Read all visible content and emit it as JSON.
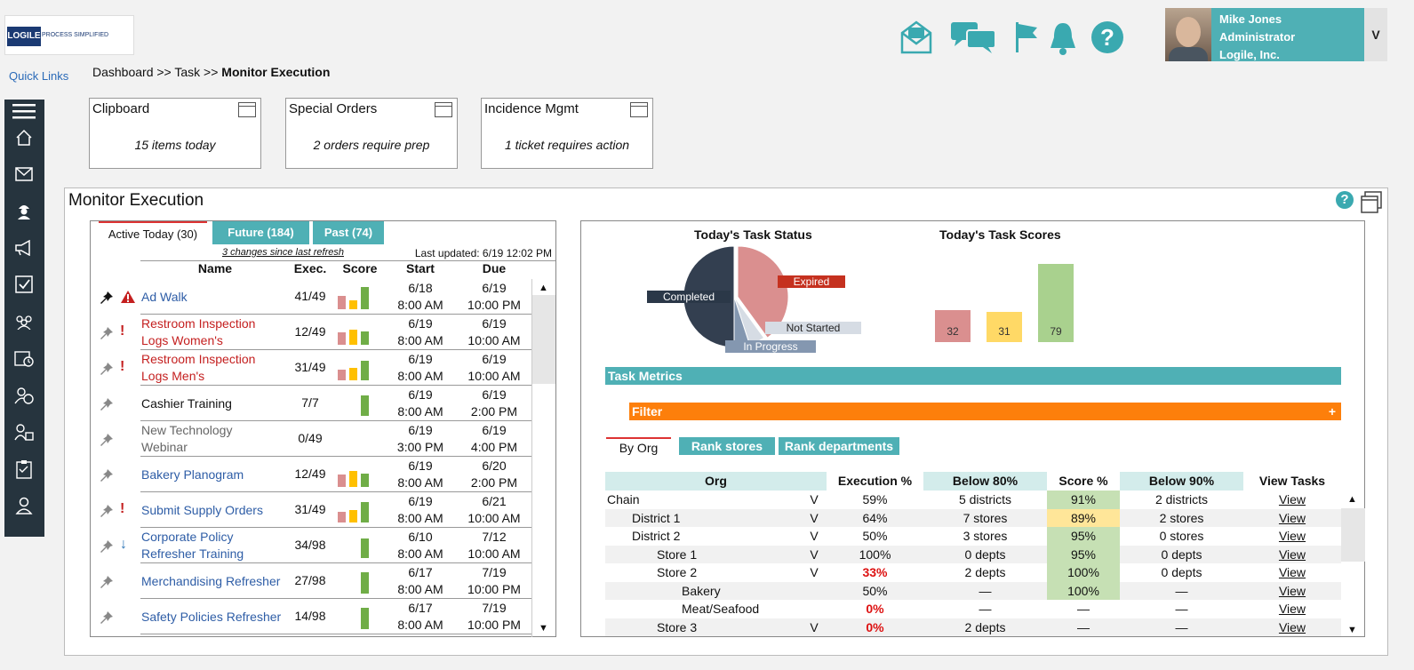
{
  "app": {
    "logo_text": "LOGILE",
    "logo_tagline": "PROCESS SIMPLIFIED",
    "quick_links": "Quick Links"
  },
  "breadcrumb": {
    "part1": "Dashboard >> Task >> ",
    "current": "Monitor Execution"
  },
  "header_icons": [
    "mail-icon",
    "chat-icon",
    "flag-icon",
    "bell-icon",
    "help-icon"
  ],
  "user": {
    "name": "Mike Jones",
    "role": "Administrator",
    "company": "Logile, Inc.",
    "menu_label": "V"
  },
  "sidebar": [
    "menu-icon",
    "home-icon",
    "mail-icon",
    "worker-icon",
    "megaphone-icon",
    "checkbox-icon",
    "team-icon",
    "schedule-icon",
    "clock-user-icon",
    "org-icon",
    "checklist-icon",
    "profile-icon"
  ],
  "cards": [
    {
      "title": "Clipboard",
      "subtitle": "15 items today"
    },
    {
      "title": "Special Orders",
      "subtitle": "2 orders require prep"
    },
    {
      "title": "Incidence Mgmt",
      "subtitle": "1 ticket requires action"
    }
  ],
  "monitor": {
    "title": "Monitor Execution",
    "tabs": [
      "Active Today (30)",
      "Future (184)",
      "Past (74)"
    ],
    "changes": "3 changes since last refresh",
    "last_updated": "Last updated: 6/19 12:02 PM",
    "headers": {
      "name": "Name",
      "exec": "Exec.",
      "score": "Score",
      "start": "Start",
      "due": "Due"
    },
    "tasks": [
      {
        "name1": "Ad Walk",
        "name2": "",
        "exec": "41/49",
        "start_date": "6/18",
        "start_time": "8:00 AM",
        "due_date": "6/19",
        "due_time": "10:00 PM",
        "color": "blue",
        "flag": "warning",
        "bars": [
          0.5,
          0.33,
          0.83
        ]
      },
      {
        "name1": "Restroom Inspection",
        "name2": "Logs Women's",
        "exec": "12/49",
        "start_date": "6/19",
        "start_time": "8:00 AM",
        "due_date": "6/19",
        "due_time": "10:00 AM",
        "color": "red",
        "flag": "!",
        "bars": [
          0.47,
          0.57,
          0.5
        ]
      },
      {
        "name1": "Restroom Inspection",
        "name2": "Logs Men's",
        "exec": "31/49",
        "start_date": "6/19",
        "start_time": "8:00 AM",
        "due_date": "6/19",
        "due_time": "10:00 AM",
        "color": "red",
        "flag": "!",
        "bars": [
          0.4,
          0.47,
          0.73
        ]
      },
      {
        "name1": "Cashier Training",
        "name2": "",
        "exec": "7/7",
        "start_date": "6/19",
        "start_time": "8:00 AM",
        "due_date": "6/19",
        "due_time": "2:00 PM",
        "color": "black",
        "flag": "",
        "bars": [
          0,
          0,
          0.77
        ]
      },
      {
        "name1": "New Technology",
        "name2": "Webinar",
        "exec": "0/49",
        "start_date": "6/19",
        "start_time": "3:00 PM",
        "due_date": "6/19",
        "due_time": "4:00 PM",
        "color": "gray",
        "flag": "",
        "bars": [
          0,
          0,
          0
        ]
      },
      {
        "name1": "Bakery Planogram",
        "name2": "",
        "exec": "12/49",
        "start_date": "6/19",
        "start_time": "8:00 AM",
        "due_date": "6/20",
        "due_time": "2:00 PM",
        "color": "blue",
        "flag": "",
        "bars": [
          0.47,
          0.6,
          0.5
        ]
      },
      {
        "name1": "Submit Supply Orders",
        "name2": "",
        "exec": "31/49",
        "start_date": "6/19",
        "start_time": "8:00 AM",
        "due_date": "6/21",
        "due_time": "10:00 AM",
        "color": "blue",
        "flag": "!",
        "bars": [
          0.4,
          0.47,
          0.77
        ]
      },
      {
        "name1": "Corporate Policy",
        "name2": "Refresher Training",
        "exec": "34/98",
        "start_date": "6/10",
        "start_time": "8:00 AM",
        "due_date": "7/12",
        "due_time": "10:00 AM",
        "color": "blue",
        "flag": "↓",
        "bars": [
          0,
          0,
          0.73
        ]
      },
      {
        "name1": "Merchandising Refresher",
        "name2": "",
        "exec": "27/98",
        "start_date": "6/17",
        "start_time": "8:00 AM",
        "due_date": "7/19",
        "due_time": "10:00 PM",
        "color": "blue",
        "flag": "",
        "bars": [
          0,
          0,
          0.8
        ]
      },
      {
        "name1": "Safety Policies Refresher",
        "name2": "",
        "exec": "14/98",
        "start_date": "6/17",
        "start_time": "8:00 AM",
        "due_date": "7/19",
        "due_time": "10:00 PM",
        "color": "blue",
        "flag": "",
        "bars": [
          0,
          0,
          0.8
        ]
      }
    ]
  },
  "status_chart": {
    "title": "Today's Task Status",
    "type": "pie",
    "slices": [
      {
        "label": "Completed",
        "value": 50,
        "color": "#333f50"
      },
      {
        "label": "Expired",
        "value": 40,
        "color": "#da8f8f"
      },
      {
        "label": "Not Started",
        "value": 5,
        "color": "#d6dce4"
      },
      {
        "label": "In Progress",
        "value": 5,
        "color": "#8497b0"
      }
    ]
  },
  "chart_data": {
    "type": "bar",
    "title": "Today's Task Scores",
    "values": [
      32,
      31,
      79
    ],
    "colors": [
      "#da8f8f",
      "#ffd966",
      "#a9d18e"
    ]
  },
  "metrics": {
    "title": "Task Metrics",
    "filter": "Filter",
    "filter_plus": "+",
    "tabs": [
      "By Org",
      "Rank stores",
      "Rank departments"
    ],
    "headers": [
      "Org",
      "Execution %",
      "Below 80%",
      "Score %",
      "Below 90%",
      "View Tasks"
    ],
    "rows": [
      {
        "org": "Chain",
        "indent": 0,
        "v": "V",
        "exec": "59%",
        "exec_red": false,
        "below80": "5 districts",
        "score": "91%",
        "score_color": "green",
        "below90": "2 districts",
        "view": "View"
      },
      {
        "org": "District 1",
        "indent": 1,
        "v": "V",
        "exec": "64%",
        "exec_red": false,
        "below80": "7 stores",
        "score": "89%",
        "score_color": "yellow",
        "below90": "2 stores",
        "view": "View"
      },
      {
        "org": "District 2",
        "indent": 1,
        "v": "V",
        "exec": "50%",
        "exec_red": false,
        "below80": "3 stores",
        "score": "95%",
        "score_color": "green",
        "below90": "0 stores",
        "view": "View"
      },
      {
        "org": "Store 1",
        "indent": 2,
        "v": "V",
        "exec": "100%",
        "exec_red": false,
        "below80": "0 depts",
        "score": "95%",
        "score_color": "green",
        "below90": "0 depts",
        "view": "View"
      },
      {
        "org": "Store 2",
        "indent": 2,
        "v": "V",
        "exec": "33%",
        "exec_red": true,
        "below80": "2 depts",
        "score": "100%",
        "score_color": "green",
        "below90": "0 depts",
        "view": "View"
      },
      {
        "org": "Bakery",
        "indent": 3,
        "v": "",
        "exec": "50%",
        "exec_red": false,
        "below80": "—",
        "score": "100%",
        "score_color": "green",
        "below90": "—",
        "view": "View"
      },
      {
        "org": "Meat/Seafood",
        "indent": 3,
        "v": "",
        "exec": "0%",
        "exec_red": true,
        "below80": "—",
        "score": "—",
        "score_color": "none",
        "below90": "—",
        "view": "View"
      },
      {
        "org": "Store 3",
        "indent": 2,
        "v": "V",
        "exec": "0%",
        "exec_red": true,
        "below80": "2 depts",
        "score": "—",
        "score_color": "none",
        "below90": "—",
        "view": "View"
      }
    ]
  }
}
